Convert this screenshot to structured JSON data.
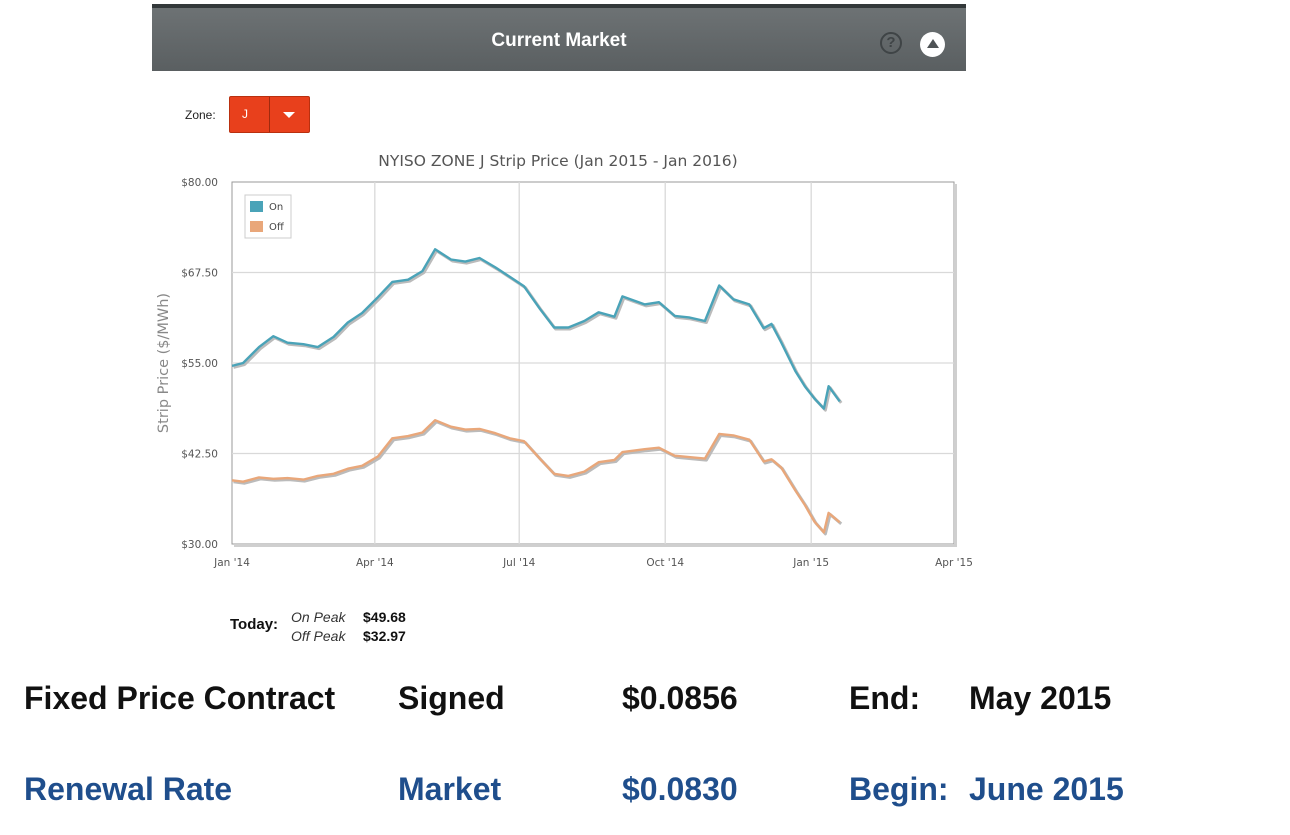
{
  "header": {
    "title": "Current Market",
    "help_icon": "question-circle-icon",
    "help_glyph": "?",
    "collapse_icon": "triangle-up-circle-icon"
  },
  "zone": {
    "label": "Zone:",
    "value": "J"
  },
  "chart_data": {
    "type": "line",
    "title": "NYISO ZONE J Strip Price (Jan 2015 - Jan 2016)",
    "xlabel": "",
    "ylabel": "Strip Price ($/MWh)",
    "ylim": [
      30,
      80
    ],
    "xlim": [
      "2014-01-01",
      "2015-04-01"
    ],
    "y_ticks": [
      "$30.00",
      "$42.50",
      "$55.00",
      "$67.50",
      "$80.00"
    ],
    "y_tick_values": [
      30,
      42.5,
      55,
      67.5,
      80
    ],
    "x_ticks": [
      "Jan '14",
      "Apr '14",
      "Jul '14",
      "Oct '14",
      "Jan '15",
      "Apr '15"
    ],
    "x_tick_dates": [
      "2014-01-01",
      "2014-04-01",
      "2014-07-01",
      "2014-10-01",
      "2015-01-01",
      "2015-04-01"
    ],
    "grid": true,
    "legend_position": "top-left",
    "series": [
      {
        "name": "On",
        "color": "#4aa3b8",
        "points": [
          [
            "2014-01-01",
            54.6
          ],
          [
            "2014-01-08",
            55.0
          ],
          [
            "2014-01-18",
            57.2
          ],
          [
            "2014-01-27",
            58.7
          ],
          [
            "2014-02-05",
            57.8
          ],
          [
            "2014-02-15",
            57.6
          ],
          [
            "2014-02-24",
            57.2
          ],
          [
            "2014-03-06",
            58.6
          ],
          [
            "2014-03-15",
            60.6
          ],
          [
            "2014-03-24",
            61.9
          ],
          [
            "2014-04-03",
            64.1
          ],
          [
            "2014-04-12",
            66.2
          ],
          [
            "2014-04-22",
            66.5
          ],
          [
            "2014-05-01",
            67.7
          ],
          [
            "2014-05-09",
            70.7
          ],
          [
            "2014-05-19",
            69.3
          ],
          [
            "2014-05-28",
            69.0
          ],
          [
            "2014-06-06",
            69.5
          ],
          [
            "2014-06-16",
            68.2
          ],
          [
            "2014-06-25",
            66.9
          ],
          [
            "2014-07-04",
            65.6
          ],
          [
            "2014-07-14",
            62.5
          ],
          [
            "2014-07-23",
            59.9
          ],
          [
            "2014-08-01",
            59.9
          ],
          [
            "2014-08-11",
            60.8
          ],
          [
            "2014-08-20",
            62.0
          ],
          [
            "2014-08-30",
            61.4
          ],
          [
            "2014-09-04",
            64.2
          ],
          [
            "2014-09-18",
            63.1
          ],
          [
            "2014-09-27",
            63.4
          ],
          [
            "2014-10-07",
            61.5
          ],
          [
            "2014-10-16",
            61.3
          ],
          [
            "2014-10-26",
            60.8
          ],
          [
            "2014-11-04",
            65.7
          ],
          [
            "2014-11-13",
            63.8
          ],
          [
            "2014-11-23",
            63.1
          ],
          [
            "2014-12-02",
            59.8
          ],
          [
            "2014-12-07",
            60.4
          ],
          [
            "2014-12-13",
            57.9
          ],
          [
            "2014-12-22",
            53.9
          ],
          [
            "2014-12-28",
            51.8
          ],
          [
            "2015-01-03",
            50.1
          ],
          [
            "2015-01-09",
            48.7
          ],
          [
            "2015-01-12",
            51.8
          ],
          [
            "2015-01-19",
            49.7
          ]
        ]
      },
      {
        "name": "Off",
        "color": "#e9a77a",
        "points": [
          [
            "2014-01-01",
            38.8
          ],
          [
            "2014-01-08",
            38.6
          ],
          [
            "2014-01-18",
            39.2
          ],
          [
            "2014-01-27",
            39.0
          ],
          [
            "2014-02-05",
            39.1
          ],
          [
            "2014-02-15",
            38.9
          ],
          [
            "2014-02-24",
            39.4
          ],
          [
            "2014-03-06",
            39.7
          ],
          [
            "2014-03-15",
            40.4
          ],
          [
            "2014-03-24",
            40.8
          ],
          [
            "2014-04-03",
            42.1
          ],
          [
            "2014-04-12",
            44.6
          ],
          [
            "2014-04-22",
            44.9
          ],
          [
            "2014-05-01",
            45.4
          ],
          [
            "2014-05-09",
            47.1
          ],
          [
            "2014-05-19",
            46.2
          ],
          [
            "2014-05-28",
            45.8
          ],
          [
            "2014-06-06",
            45.9
          ],
          [
            "2014-06-16",
            45.3
          ],
          [
            "2014-06-25",
            44.6
          ],
          [
            "2014-07-04",
            44.2
          ],
          [
            "2014-07-14",
            41.8
          ],
          [
            "2014-07-23",
            39.7
          ],
          [
            "2014-08-01",
            39.4
          ],
          [
            "2014-08-11",
            40.0
          ],
          [
            "2014-08-20",
            41.3
          ],
          [
            "2014-08-30",
            41.6
          ],
          [
            "2014-09-04",
            42.7
          ],
          [
            "2014-09-18",
            43.1
          ],
          [
            "2014-09-27",
            43.3
          ],
          [
            "2014-10-07",
            42.2
          ],
          [
            "2014-10-16",
            42.0
          ],
          [
            "2014-10-26",
            41.8
          ],
          [
            "2014-11-04",
            45.2
          ],
          [
            "2014-11-13",
            45.0
          ],
          [
            "2014-11-23",
            44.4
          ],
          [
            "2014-12-02",
            41.4
          ],
          [
            "2014-12-07",
            41.7
          ],
          [
            "2014-12-13",
            40.6
          ],
          [
            "2014-12-22",
            37.4
          ],
          [
            "2014-12-28",
            35.4
          ],
          [
            "2015-01-03",
            33.1
          ],
          [
            "2015-01-09",
            31.6
          ],
          [
            "2015-01-12",
            34.3
          ],
          [
            "2015-01-19",
            33.0
          ]
        ]
      }
    ]
  },
  "today": {
    "label": "Today:",
    "on_peak_label": "On Peak",
    "on_peak_value": "$49.68",
    "off_peak_label": "Off Peak",
    "off_peak_value": "$32.97"
  },
  "contract": {
    "fixed": {
      "label": "Fixed Price Contract",
      "status": "Signed",
      "rate": "$0.0856",
      "date_label": "End:",
      "date": "May 2015"
    },
    "renewal": {
      "label": "Renewal Rate",
      "status": "Market",
      "rate": "$0.0830",
      "date_label": "Begin:",
      "date": "June 2015"
    }
  }
}
